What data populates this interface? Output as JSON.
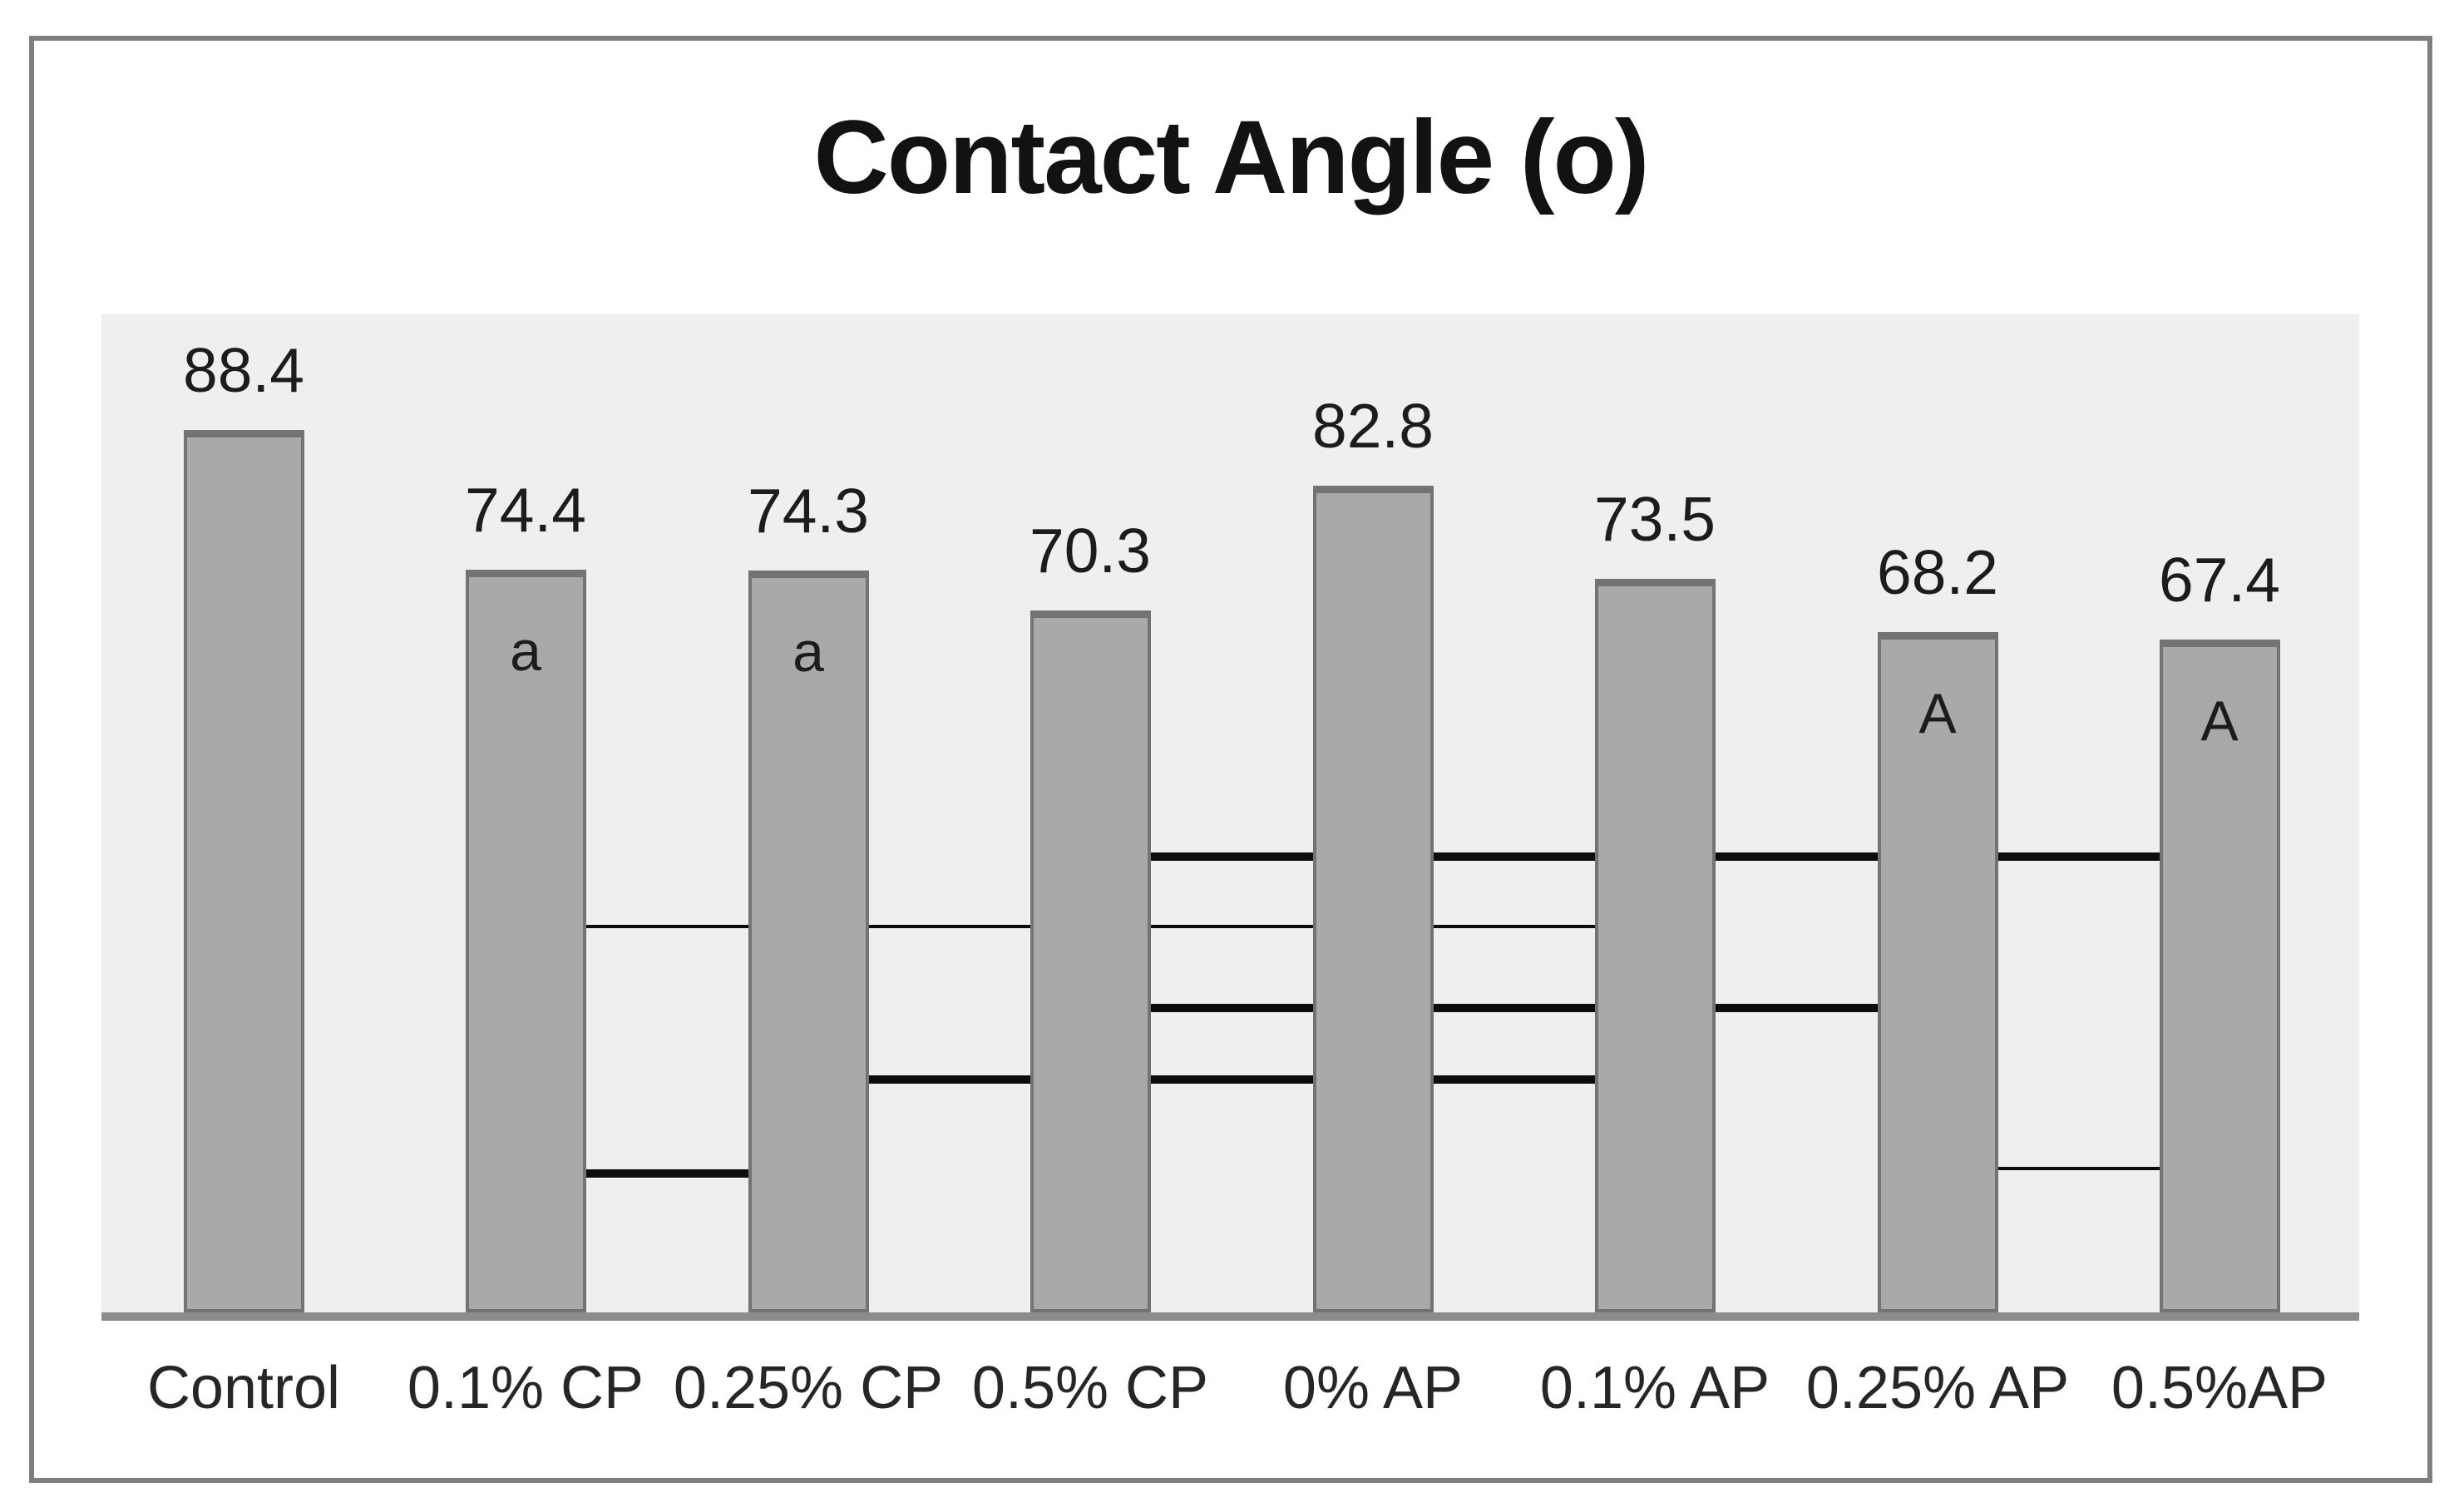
{
  "chart_data": {
    "type": "bar",
    "title": "Contact Angle (o)",
    "xlabel": "",
    "ylabel": "",
    "ylim": [
      0,
      100
    ],
    "grid": false,
    "legend": false,
    "categories": [
      "Control",
      "0.1% CP",
      "0.25% CP",
      "0.5% CP",
      "0% AP",
      "0.1% AP",
      "0.25% AP",
      "0.5%AP"
    ],
    "values": [
      88.4,
      74.4,
      74.3,
      70.3,
      82.8,
      73.5,
      68.2,
      67.4
    ],
    "bar_letters": [
      "",
      "a",
      "a",
      "",
      "",
      "",
      "A",
      "A"
    ],
    "significance_brackets": [
      {
        "from": "0.5% CP",
        "to": "0.5%AP",
        "style": "thick"
      },
      {
        "from": "0.1% CP",
        "to": "0.1% AP",
        "style": "thin"
      },
      {
        "from": "0.5% CP",
        "to": "0.25% AP",
        "style": "thick"
      },
      {
        "from": "0.25% CP",
        "to": "0.1% AP",
        "style": "thick"
      },
      {
        "from": "0.1% CP",
        "to": "0.25% CP",
        "style": "thick"
      },
      {
        "from": "0.25% AP",
        "to": "0.5%AP",
        "style": "thin"
      }
    ],
    "colors": {
      "bar_fill": "#a9a9a9",
      "bar_border": "#737373",
      "plot_background": "#efefef",
      "axis_line": "#8c8c8c",
      "bracket_line": "#0d0d0d",
      "text": "#1c1c1c",
      "frame_border": "#7f7f7f",
      "page_background": "#ffffff"
    }
  }
}
